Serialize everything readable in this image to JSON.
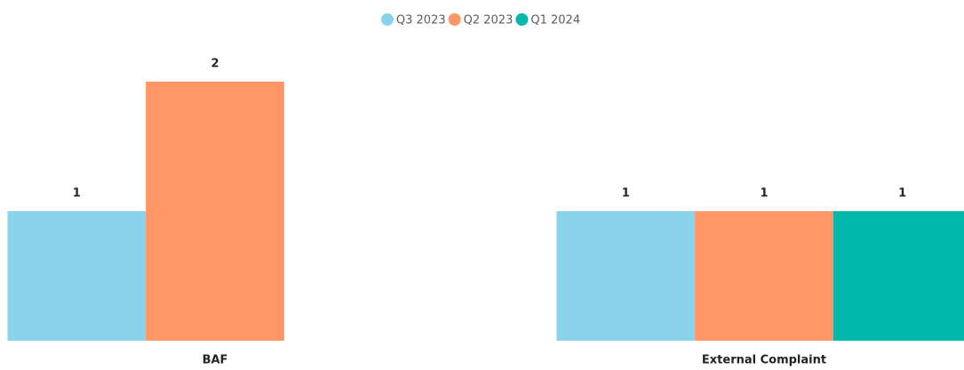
{
  "chart_data": {
    "type": "bar",
    "categories": [
      "BAF",
      "External Complaint"
    ],
    "series": [
      {
        "name": "Q3 2023",
        "color": "#8ad4eb",
        "values": [
          1,
          1
        ]
      },
      {
        "name": "Q2 2023",
        "color": "#fe9666",
        "values": [
          2,
          1
        ]
      },
      {
        "name": "Q1 2024",
        "color": "#01b8aa",
        "values": [
          null,
          1
        ]
      }
    ]
  }
}
